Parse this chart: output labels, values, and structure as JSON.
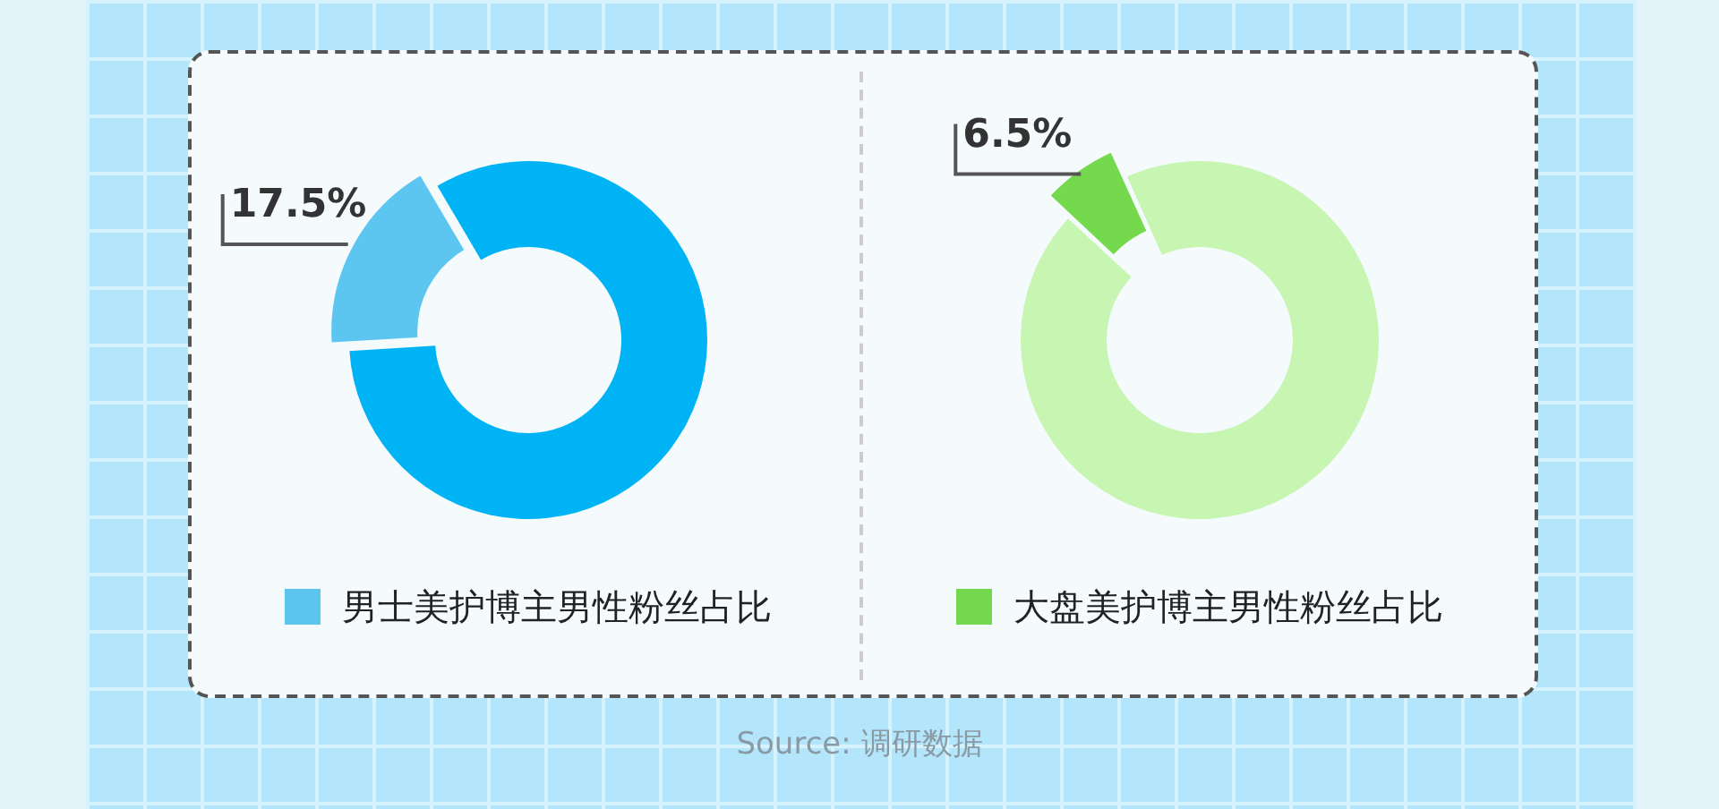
{
  "chart_data": [
    {
      "type": "donut",
      "categories": [
        null,
        "男士美护博主男性粉丝占比"
      ],
      "values": [
        82.5,
        17.5
      ],
      "colors": [
        "#00b3f5",
        "#5cc6f0"
      ],
      "value_labels": [
        null,
        "17.5%"
      ],
      "legend": "bottom"
    },
    {
      "type": "donut",
      "categories": [
        null,
        "大盘美护博主男性粉丝占比"
      ],
      "values": [
        93.5,
        6.5
      ],
      "colors": [
        "#c7f5b2",
        "#74d94c"
      ],
      "value_labels": [
        null,
        "6.5%"
      ],
      "legend": "bottom",
      "annotations": [
        "Source: 调研数据"
      ]
    }
  ]
}
